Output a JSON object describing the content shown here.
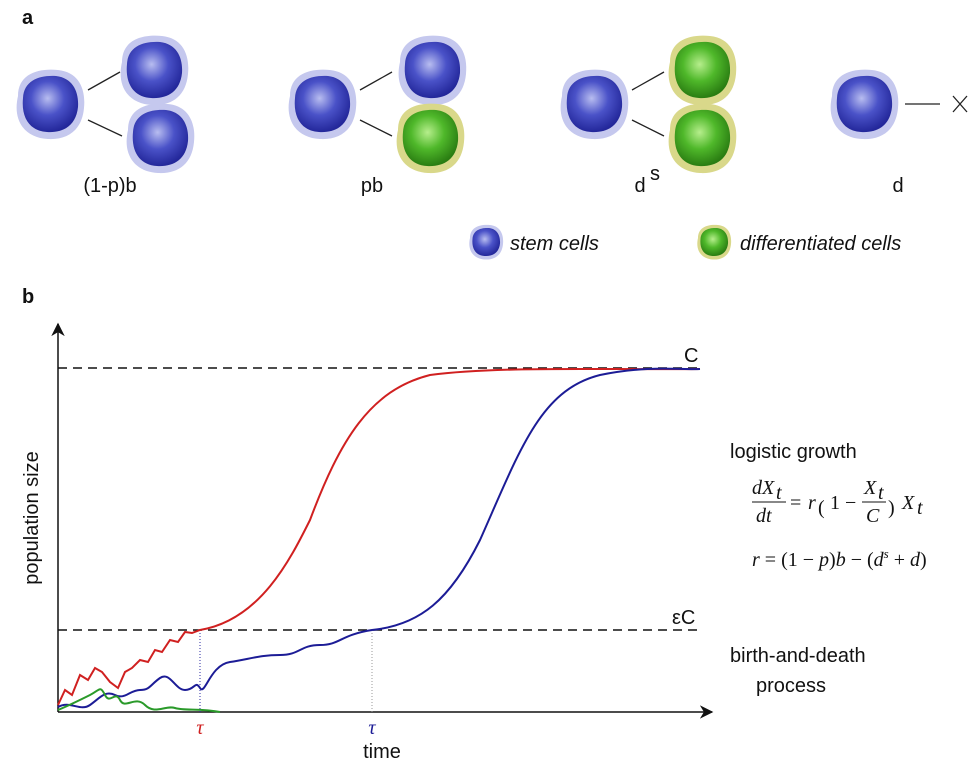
{
  "panel_a": {
    "label": "a",
    "divisions": [
      "(1-p)b",
      "pb",
      "d",
      "d"
    ],
    "divisions_superscript": "s",
    "legend": [
      "stem cells",
      "differentiated cells"
    ]
  },
  "panel_b": {
    "label": "b",
    "y_axis_label": "population size",
    "x_axis_label": "time",
    "capacity_label": "C",
    "threshold_label": "εC",
    "tau_labels": [
      "τ",
      "τ"
    ],
    "logistic_title": "logistic growth",
    "equation_1": [
      "dX",
      "t",
      "dt",
      "= ",
      "r",
      "(",
      "1 − ",
      "X",
      "t",
      "C",
      ")",
      "X",
      "t"
    ],
    "equation_2": [
      "r",
      " = (1 − ",
      "p",
      ")",
      "b",
      " − (",
      "d",
      "s",
      " + ",
      "d",
      ")"
    ],
    "process_label": [
      "birth-and-death",
      "process"
    ]
  }
}
